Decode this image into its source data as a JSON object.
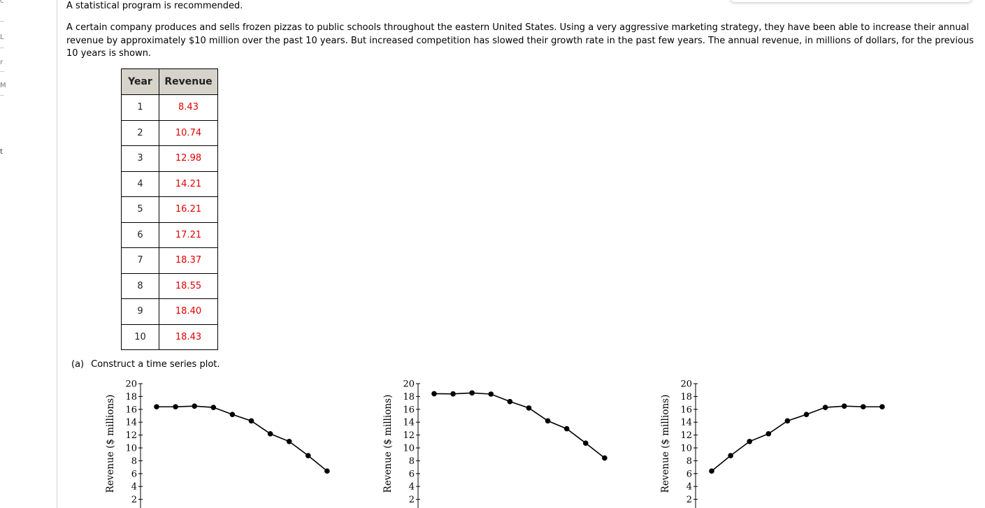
{
  "left_rail": {
    "marks": [
      "c",
      "L",
      "r",
      "M",
      "t"
    ]
  },
  "notice": "A statistical program is recommended.",
  "problem_text": "A certain company produces and sells frozen pizzas to public schools throughout the eastern United States. Using a very aggressive marketing strategy, they have been able to increase their annual revenue by approximately $10 million over the past 10 years. But increased competition has slowed their growth rate in the past few years. The annual revenue, in millions of dollars, for the previous 10 years is shown.",
  "table": {
    "headers": [
      "Year",
      "Revenue"
    ],
    "rows": [
      [
        "1",
        "8.43"
      ],
      [
        "2",
        "10.74"
      ],
      [
        "3",
        "12.98"
      ],
      [
        "4",
        "14.21"
      ],
      [
        "5",
        "16.21"
      ],
      [
        "6",
        "17.21"
      ],
      [
        "7",
        "18.37"
      ],
      [
        "8",
        "18.55"
      ],
      [
        "9",
        "18.40"
      ],
      [
        "10",
        "18.43"
      ]
    ]
  },
  "part_a": {
    "label": "(a)",
    "text": "Construct a time series plot."
  },
  "colors": {
    "revenue_text": "#e00000",
    "header_bg": "#d6d3cb",
    "line": "#000000"
  },
  "chart_data": [
    {
      "type": "line",
      "ylabel": "Revenue ($ millions)",
      "yticks": [
        2,
        4,
        6,
        8,
        10,
        12,
        14,
        16,
        18,
        20
      ],
      "ylim": [
        0,
        20
      ],
      "x": [
        1,
        2,
        3,
        4,
        5,
        6,
        7,
        8,
        9,
        10
      ],
      "series": [
        {
          "values": [
            16.4,
            16.4,
            16.5,
            16.3,
            15.2,
            14.2,
            12.2,
            11.0,
            8.8,
            6.4
          ]
        }
      ]
    },
    {
      "type": "line",
      "ylabel": "Revenue ($ millions)",
      "yticks": [
        2,
        4,
        6,
        8,
        10,
        12,
        14,
        16,
        18,
        20
      ],
      "ylim": [
        0,
        20
      ],
      "x": [
        1,
        2,
        3,
        4,
        5,
        6,
        7,
        8,
        9,
        10
      ],
      "series": [
        {
          "values": [
            18.43,
            18.4,
            18.55,
            18.37,
            17.21,
            16.21,
            14.21,
            12.98,
            10.74,
            8.43
          ]
        }
      ]
    },
    {
      "type": "line",
      "ylabel": "Revenue ($ millions)",
      "yticks": [
        2,
        4,
        6,
        8,
        10,
        12,
        14,
        16,
        18,
        20
      ],
      "ylim": [
        0,
        20
      ],
      "x": [
        1,
        2,
        3,
        4,
        5,
        6,
        7,
        8,
        9,
        10
      ],
      "series": [
        {
          "values": [
            6.4,
            8.8,
            11.0,
            12.2,
            14.2,
            15.2,
            16.3,
            16.5,
            16.4,
            16.4
          ]
        }
      ]
    }
  ]
}
